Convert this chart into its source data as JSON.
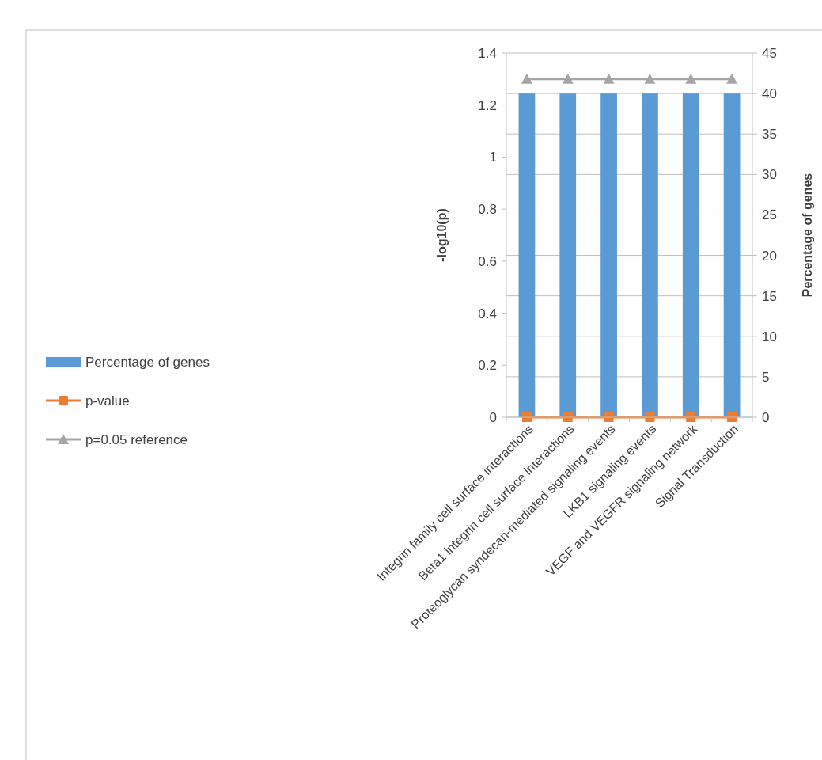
{
  "chart_data": {
    "type": "bar",
    "categories": [
      "Integrin family cell surface interactions",
      "Beta1 integrin cell surface interactions",
      "Proteoglycan syndecan-mediated signaling events",
      "LKB1 signaling events",
      "VEGF and VEGFR signaling network",
      "Signal Transduction"
    ],
    "series": [
      {
        "name": "Percentage of genes",
        "axis": "y2",
        "color": "#5b9bd5",
        "values": [
          40,
          40,
          40,
          40,
          40,
          40
        ]
      },
      {
        "name": "p-value",
        "type": "line",
        "axis": "y",
        "color": "#ed7d31",
        "marker": "square",
        "values": [
          0,
          0,
          0,
          0,
          0,
          0
        ]
      },
      {
        "name": "p=0.05 reference",
        "type": "line",
        "axis": "y",
        "color": "#a5a5a5",
        "marker": "triangle",
        "values": [
          1.3,
          1.3,
          1.3,
          1.3,
          1.3,
          1.3
        ]
      }
    ],
    "ylabel": "-log10(p)",
    "y2label": "Percentage of genes",
    "ylim": [
      0,
      1.4
    ],
    "yticks": [
      0,
      0.2,
      0.4,
      0.6,
      0.8,
      1,
      1.2,
      1.4
    ],
    "y2lim": [
      0,
      45
    ],
    "y2ticks": [
      0,
      5,
      10,
      15,
      20,
      25,
      30,
      35,
      40,
      45
    ],
    "grid": true,
    "legend": "left"
  }
}
